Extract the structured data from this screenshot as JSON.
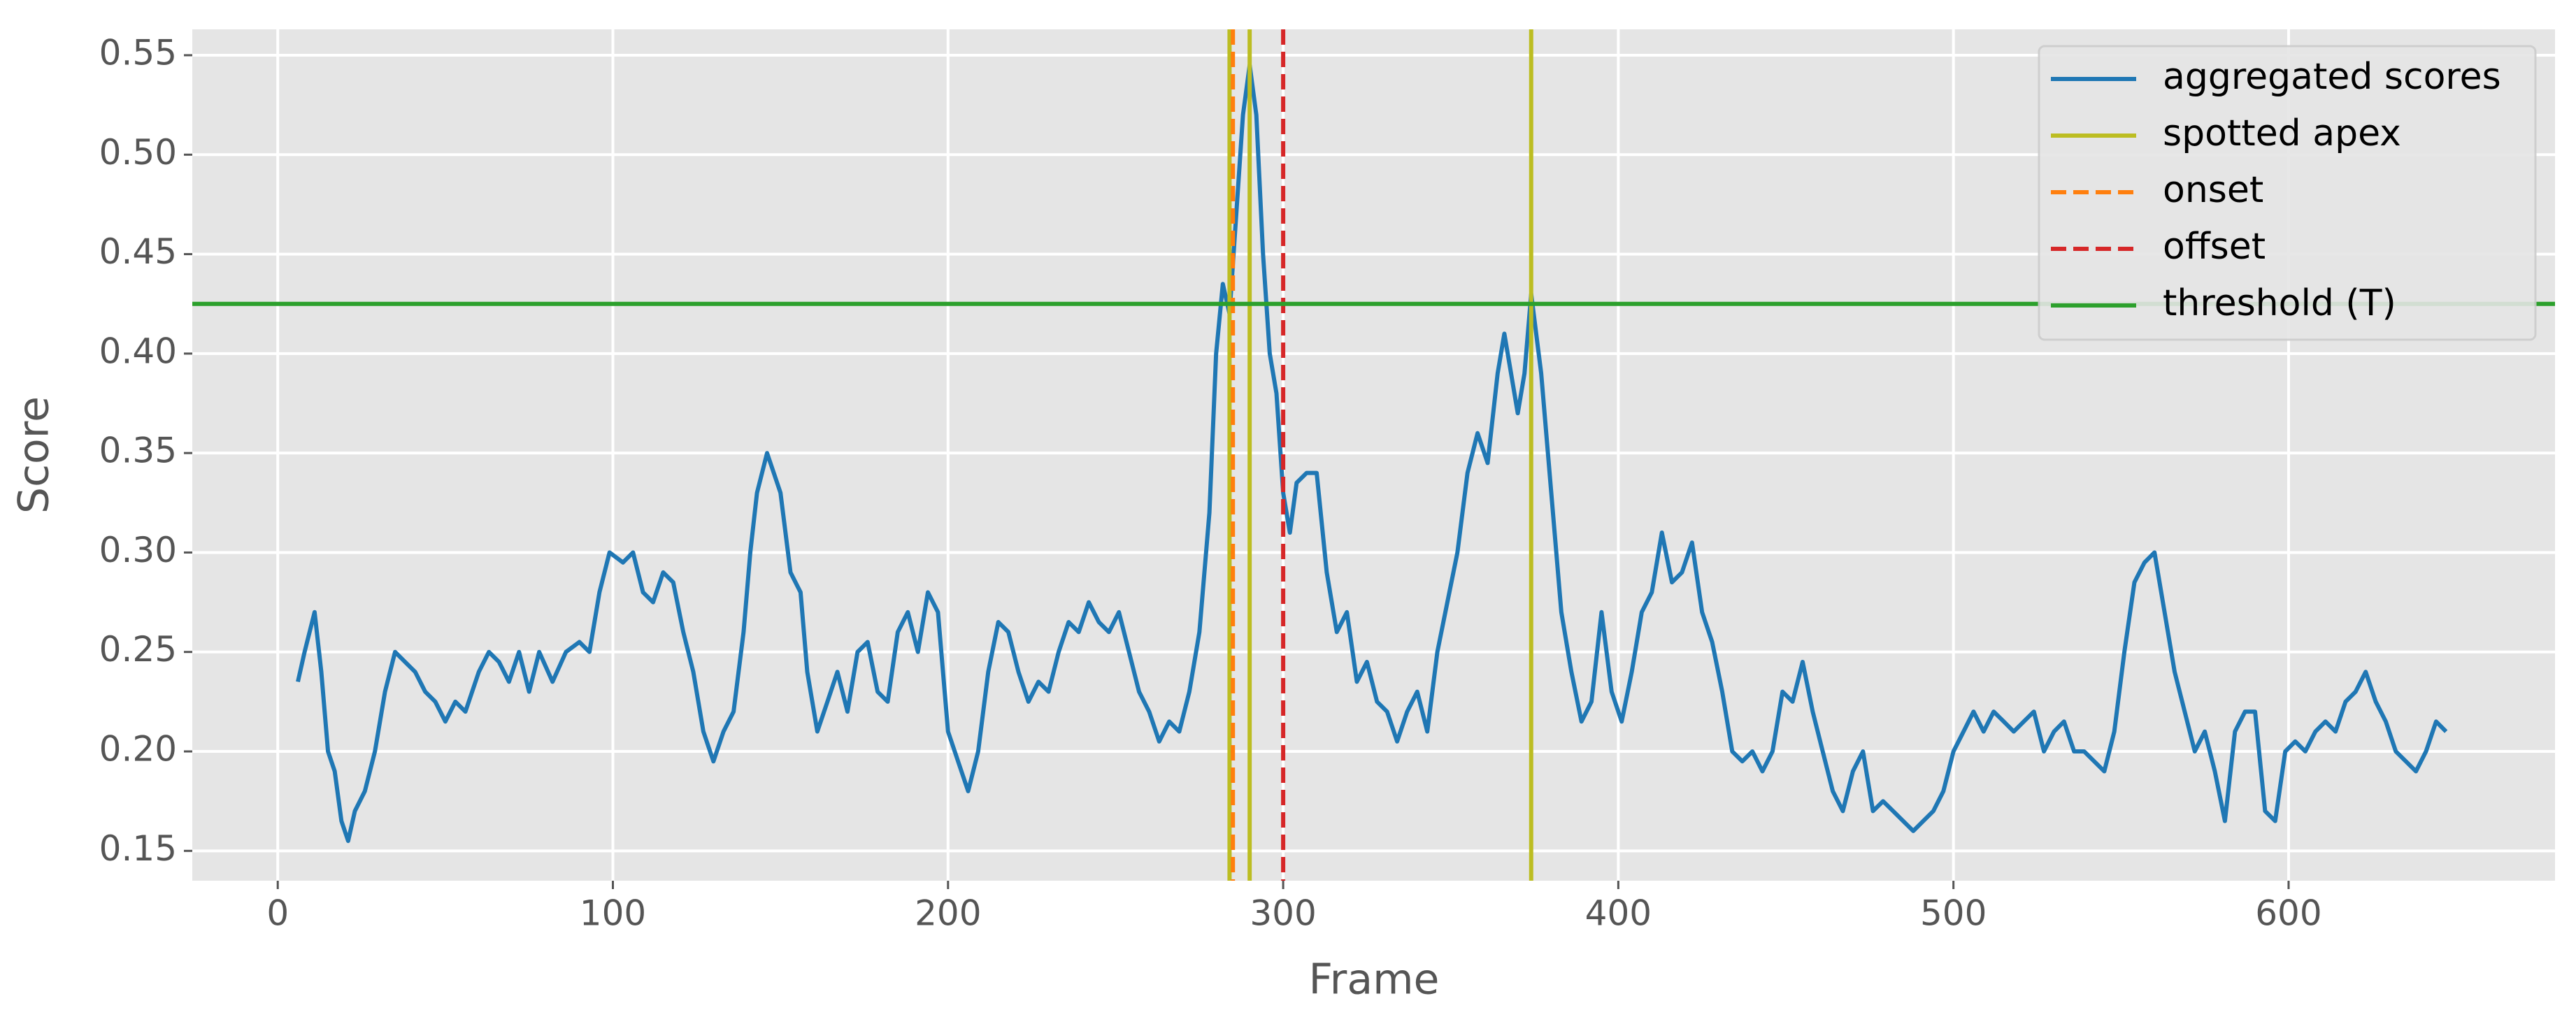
{
  "chart_data": {
    "type": "line",
    "x_label": "Frame",
    "y_label": "Score",
    "xlim": [
      -25.5,
      679.5
    ],
    "ylim": [
      0.135,
      0.563
    ],
    "xticks": [
      0,
      100,
      200,
      300,
      400,
      500,
      600
    ],
    "yticks": [
      0.15,
      {
        "value": 0.2,
        "label": "0.20"
      },
      0.25,
      {
        "value": 0.3,
        "label": "0.30"
      },
      0.35,
      {
        "value": 0.4,
        "label": "0.40"
      },
      0.45,
      {
        "value": 0.5,
        "label": "0.50"
      },
      0.55
    ],
    "grid": true,
    "legend": "upper right",
    "series": [
      {
        "name": "aggregated scores",
        "color": "#1f77b4",
        "x": [
          6,
          8,
          11,
          13,
          15,
          17,
          19,
          21,
          23,
          26,
          29,
          32,
          35,
          38,
          41,
          44,
          47,
          50,
          53,
          56,
          60,
          63,
          66,
          69,
          72,
          75,
          78,
          82,
          86,
          90,
          93,
          96,
          99,
          103,
          106,
          109,
          112,
          115,
          118,
          121,
          124,
          127,
          130,
          133,
          136,
          139,
          141,
          143,
          146,
          148,
          150,
          153,
          156,
          158,
          161,
          164,
          167,
          170,
          173,
          176,
          179,
          182,
          185,
          188,
          191,
          194,
          197,
          200,
          203,
          206,
          209,
          212,
          215,
          218,
          221,
          224,
          227,
          230,
          233,
          236,
          239,
          242,
          245,
          248,
          251,
          254,
          257,
          260,
          263,
          266,
          269,
          272,
          275,
          278,
          280,
          282,
          284,
          286,
          288,
          290,
          292,
          294,
          296,
          298,
          300,
          302,
          304,
          307,
          310,
          313,
          316,
          319,
          322,
          325,
          328,
          331,
          334,
          337,
          340,
          343,
          346,
          349,
          352,
          355,
          358,
          361,
          364,
          366,
          368,
          370,
          372,
          374,
          377,
          380,
          383,
          386,
          389,
          392,
          395,
          398,
          401,
          404,
          407,
          410,
          413,
          416,
          419,
          422,
          425,
          428,
          431,
          434,
          437,
          440,
          443,
          446,
          449,
          452,
          455,
          458,
          461,
          464,
          467,
          470,
          473,
          476,
          479,
          482,
          485,
          488,
          491,
          494,
          497,
          500,
          503,
          506,
          509,
          512,
          515,
          518,
          521,
          524,
          527,
          530,
          533,
          536,
          539,
          542,
          545,
          548,
          551,
          554,
          557,
          560,
          563,
          566,
          569,
          572,
          575,
          578,
          581,
          584,
          587,
          590,
          593,
          596,
          599,
          602,
          605,
          608,
          611,
          614,
          617,
          620,
          623,
          626,
          629,
          632,
          635,
          638,
          641,
          644,
          647
        ],
        "values": [
          0.235,
          0.25,
          0.27,
          0.24,
          0.2,
          0.19,
          0.165,
          0.155,
          0.17,
          0.18,
          0.2,
          0.23,
          0.25,
          0.245,
          0.24,
          0.23,
          0.225,
          0.215,
          0.225,
          0.22,
          0.24,
          0.25,
          0.245,
          0.235,
          0.25,
          0.23,
          0.25,
          0.235,
          0.25,
          0.255,
          0.25,
          0.28,
          0.3,
          0.295,
          0.3,
          0.28,
          0.275,
          0.29,
          0.285,
          0.26,
          0.24,
          0.21,
          0.195,
          0.21,
          0.22,
          0.26,
          0.3,
          0.33,
          0.35,
          0.34,
          0.33,
          0.29,
          0.28,
          0.24,
          0.21,
          0.225,
          0.24,
          0.22,
          0.25,
          0.255,
          0.23,
          0.225,
          0.26,
          0.27,
          0.25,
          0.28,
          0.27,
          0.21,
          0.195,
          0.18,
          0.2,
          0.24,
          0.265,
          0.26,
          0.24,
          0.225,
          0.235,
          0.23,
          0.25,
          0.265,
          0.26,
          0.275,
          0.265,
          0.26,
          0.27,
          0.25,
          0.23,
          0.22,
          0.205,
          0.215,
          0.21,
          0.23,
          0.26,
          0.32,
          0.4,
          0.435,
          0.42,
          0.47,
          0.52,
          0.545,
          0.52,
          0.45,
          0.4,
          0.38,
          0.33,
          0.31,
          0.335,
          0.34,
          0.34,
          0.29,
          0.26,
          0.27,
          0.235,
          0.245,
          0.225,
          0.22,
          0.205,
          0.22,
          0.23,
          0.21,
          0.25,
          0.275,
          0.3,
          0.34,
          0.36,
          0.345,
          0.39,
          0.41,
          0.39,
          0.37,
          0.39,
          0.43,
          0.39,
          0.33,
          0.27,
          0.24,
          0.215,
          0.225,
          0.27,
          0.23,
          0.215,
          0.24,
          0.27,
          0.28,
          0.31,
          0.285,
          0.29,
          0.305,
          0.27,
          0.255,
          0.23,
          0.2,
          0.195,
          0.2,
          0.19,
          0.2,
          0.23,
          0.225,
          0.245,
          0.22,
          0.2,
          0.18,
          0.17,
          0.19,
          0.2,
          0.17,
          0.175,
          0.17,
          0.165,
          0.16,
          0.165,
          0.17,
          0.18,
          0.2,
          0.21,
          0.22,
          0.21,
          0.22,
          0.215,
          0.21,
          0.215,
          0.22,
          0.2,
          0.21,
          0.215,
          0.2,
          0.2,
          0.195,
          0.19,
          0.21,
          0.25,
          0.285,
          0.295,
          0.3,
          0.27,
          0.24,
          0.22,
          0.2,
          0.21,
          0.19,
          0.165,
          0.21,
          0.22,
          0.22,
          0.17,
          0.165,
          0.2,
          0.205,
          0.2,
          0.21,
          0.215,
          0.21,
          0.225,
          0.23,
          0.24,
          0.225,
          0.215,
          0.2,
          0.195,
          0.19,
          0.2,
          0.215,
          0.21
        ]
      }
    ],
    "vlines": [
      {
        "name": "spotted apex",
        "color": "#bcbd22",
        "dashed": false,
        "x": [
          284,
          290,
          374
        ]
      },
      {
        "name": "onset",
        "color": "#ff7f0e",
        "dashed": true,
        "x": [
          285
        ]
      },
      {
        "name": "offset",
        "color": "#d62728",
        "dashed": true,
        "x": [
          300
        ]
      }
    ],
    "hline": {
      "name": "threshold (T)",
      "color": "#2ca02c",
      "value": 0.425
    }
  }
}
